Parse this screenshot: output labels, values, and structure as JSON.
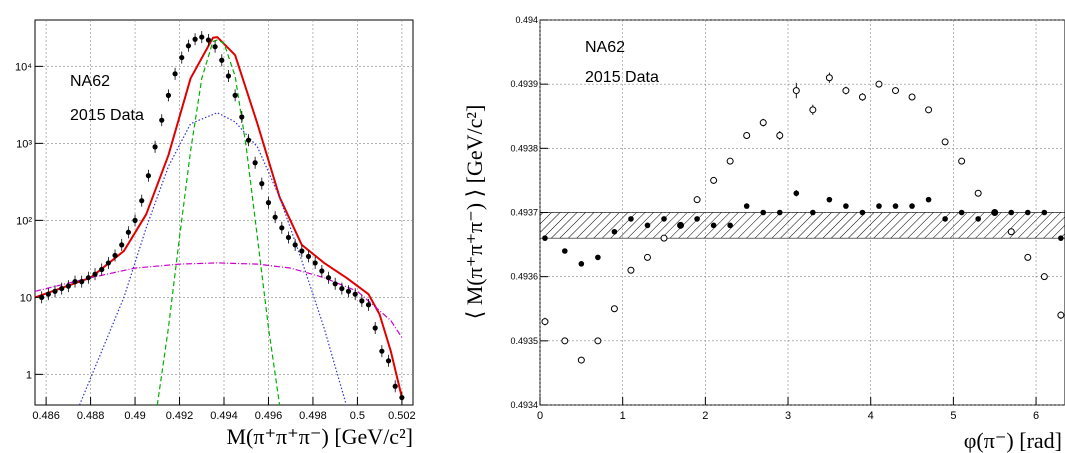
{
  "chart_data": [
    {
      "type": "scatter",
      "panel": "left",
      "annotations": [
        "NA62",
        "2015 Data"
      ],
      "xlabel": "M(π⁺π⁺π⁻) [GeV/c²]",
      "ylabel": "",
      "xlim": [
        0.4855,
        0.5025
      ],
      "ylim": [
        0.4,
        40000
      ],
      "yscale": "log",
      "grid": true,
      "xticks": [
        "0.486",
        "0.488",
        "0.49",
        "0.492",
        "0.494",
        "0.496",
        "0.498",
        "0.5",
        "0.502"
      ],
      "xtick_values": [
        0.486,
        0.488,
        0.49,
        0.492,
        0.494,
        0.496,
        0.498,
        0.5,
        0.502
      ],
      "yticks": [
        "1",
        "10",
        "10²",
        "10³",
        "10⁴"
      ],
      "ytick_values": [
        1,
        10,
        100,
        1000,
        10000
      ],
      "colors": {
        "total_fit": "#e00000",
        "narrow_gauss": "#00b000",
        "wide_gauss": "#3333cc",
        "background": "#cc00cc",
        "data": "#000000"
      },
      "series": [
        {
          "kind": "points",
          "x": [
            0.4858,
            0.4861,
            0.4864,
            0.4867,
            0.487,
            0.4873,
            0.4876,
            0.4879,
            0.4882,
            0.4885,
            0.4888,
            0.4891,
            0.4894,
            0.4897,
            0.49,
            0.4903,
            0.4906,
            0.4909,
            0.4912,
            0.4915,
            0.4918,
            0.4921,
            0.4924,
            0.4927,
            0.493,
            0.4933,
            0.4936,
            0.4939,
            0.4942,
            0.4945,
            0.4948,
            0.4951,
            0.4954,
            0.4957,
            0.496,
            0.4963,
            0.4966,
            0.4969,
            0.4972,
            0.4975,
            0.4978,
            0.4981,
            0.4984,
            0.4987,
            0.499,
            0.4993,
            0.4996,
            0.4999,
            0.5002,
            0.5005,
            0.5008,
            0.5011,
            0.5014,
            0.5017,
            0.502
          ],
          "y": [
            10,
            11,
            12,
            13,
            14,
            16,
            16,
            18,
            20,
            23,
            28,
            35,
            48,
            70,
            100,
            180,
            380,
            900,
            2000,
            4200,
            8000,
            13000,
            18500,
            22500,
            24000,
            22000,
            18000,
            12000,
            7500,
            4200,
            2200,
            1100,
            560,
            300,
            170,
            110,
            80,
            60,
            48,
            40,
            34,
            28,
            22,
            18,
            15,
            13,
            12,
            11,
            9,
            8,
            4,
            2,
            1.5,
            0.7,
            0.5
          ]
        },
        {
          "kind": "line",
          "x": [
            0.4855,
            0.488,
            0.4895,
            0.4905,
            0.4915,
            0.4925,
            0.4935,
            0.4937,
            0.4945,
            0.4955,
            0.4965,
            0.4975,
            0.4985,
            0.4995,
            0.5005,
            0.501,
            0.5015,
            0.502
          ],
          "y": [
            10,
            18,
            40,
            120,
            700,
            7000,
            23500,
            24000,
            14000,
            1800,
            200,
            48,
            28,
            18,
            11,
            6,
            2,
            0.5
          ]
        },
        {
          "kind": "line",
          "x": [
            0.491,
            0.4915,
            0.492,
            0.4925,
            0.493,
            0.4935,
            0.4937,
            0.494,
            0.4945,
            0.495,
            0.4955,
            0.496,
            0.4965
          ],
          "y": [
            0.4,
            4,
            60,
            800,
            7000,
            21000,
            22000,
            20000,
            7500,
            900,
            60,
            4,
            0.4
          ]
        },
        {
          "kind": "line",
          "x": [
            0.4875,
            0.4885,
            0.4895,
            0.4905,
            0.4915,
            0.4925,
            0.4937,
            0.4945,
            0.4955,
            0.4965,
            0.4975,
            0.4985,
            0.4995
          ],
          "y": [
            0.4,
            2,
            10,
            80,
            500,
            1800,
            2500,
            1900,
            900,
            200,
            30,
            4,
            0.4
          ]
        },
        {
          "kind": "line",
          "x": [
            0.4855,
            0.488,
            0.49,
            0.492,
            0.4937,
            0.4955,
            0.497,
            0.4985,
            0.5,
            0.5015,
            0.502
          ],
          "y": [
            12,
            18,
            24,
            27,
            28,
            27,
            24,
            18,
            12,
            5,
            3
          ]
        }
      ]
    },
    {
      "type": "scatter",
      "panel": "right",
      "annotations": [
        "NA62",
        "2015 Data"
      ],
      "xlabel": "φ(π⁻) [rad]",
      "ylabel": "⟨ M(π⁺π⁺π⁻) ⟩ [GeV/c²]",
      "xlim": [
        0,
        6.35
      ],
      "ylim": [
        0.4934,
        0.494
      ],
      "grid": true,
      "xticks": [
        "0",
        "1",
        "2",
        "3",
        "4",
        "5",
        "6"
      ],
      "xtick_values": [
        0,
        1,
        2,
        3,
        4,
        5,
        6
      ],
      "yticks": [
        "0.4934",
        "0.4935",
        "0.4936",
        "0.4937",
        "0.4938",
        "0.4939",
        "0.494"
      ],
      "ytick_values": [
        0.4934,
        0.4935,
        0.4936,
        0.4937,
        0.4938,
        0.4939,
        0.494
      ],
      "band": [
        0.49366,
        0.4937
      ],
      "series": [
        {
          "kind": "open-circles",
          "x": [
            0.06,
            0.3,
            0.5,
            0.7,
            0.9,
            1.1,
            1.3,
            1.5,
            1.7,
            1.9,
            2.1,
            2.3,
            2.5,
            2.7,
            2.9,
            3.1,
            3.3,
            3.5,
            3.7,
            3.9,
            4.1,
            4.3,
            4.5,
            4.7,
            4.9,
            5.1,
            5.3,
            5.5,
            5.7,
            5.9,
            6.1,
            6.3
          ],
          "y": [
            0.49353,
            0.4935,
            0.49347,
            0.4935,
            0.49355,
            0.49361,
            0.49363,
            0.49366,
            0.49368,
            0.49372,
            0.49375,
            0.49378,
            0.49382,
            0.49384,
            0.49382,
            0.49389,
            0.49386,
            0.49391,
            0.49389,
            0.49388,
            0.4939,
            0.49389,
            0.49388,
            0.49386,
            0.49381,
            0.49378,
            0.49373,
            0.4937,
            0.49367,
            0.49363,
            0.4936,
            0.49354
          ],
          "errors": [
            6e-06,
            5e-06,
            5e-06,
            5e-06,
            5e-06,
            5e-06,
            5e-06,
            5e-06,
            5e-06,
            5e-06,
            5e-06,
            5e-06,
            5e-06,
            6e-06,
            7e-06,
            1.2e-05,
            8e-06,
            8e-06,
            6e-06,
            6e-06,
            5e-06,
            5e-06,
            5e-06,
            5e-06,
            5e-06,
            5e-06,
            5e-06,
            5e-06,
            5e-06,
            5e-06,
            5e-06,
            6e-06
          ]
        },
        {
          "kind": "filled-circles",
          "x": [
            0.06,
            0.3,
            0.5,
            0.7,
            0.9,
            1.1,
            1.3,
            1.5,
            1.7,
            1.9,
            2.1,
            2.3,
            2.5,
            2.7,
            2.9,
            3.1,
            3.3,
            3.5,
            3.7,
            3.9,
            4.1,
            4.3,
            4.5,
            4.7,
            4.9,
            5.1,
            5.3,
            5.5,
            5.7,
            5.9,
            6.1,
            6.3
          ],
          "y": [
            0.49366,
            0.49364,
            0.49362,
            0.49363,
            0.49367,
            0.49369,
            0.49368,
            0.49369,
            0.49368,
            0.49369,
            0.49368,
            0.49368,
            0.49371,
            0.4937,
            0.4937,
            0.49373,
            0.4937,
            0.49372,
            0.49371,
            0.4937,
            0.49371,
            0.49371,
            0.49371,
            0.49372,
            0.49369,
            0.4937,
            0.49369,
            0.4937,
            0.4937,
            0.4937,
            0.4937,
            0.49366
          ],
          "errors": [
            3e-06,
            2e-06,
            2e-06,
            2e-06,
            2e-06,
            2e-06,
            2e-06,
            2e-06,
            2e-06,
            2e-06,
            2e-06,
            2e-06,
            2e-06,
            3e-06,
            4e-06,
            5e-06,
            4e-06,
            3e-06,
            3e-06,
            2e-06,
            2e-06,
            2e-06,
            2e-06,
            2e-06,
            2e-06,
            2e-06,
            2e-06,
            2e-06,
            2e-06,
            2e-06,
            2e-06,
            3e-06
          ]
        }
      ]
    }
  ]
}
